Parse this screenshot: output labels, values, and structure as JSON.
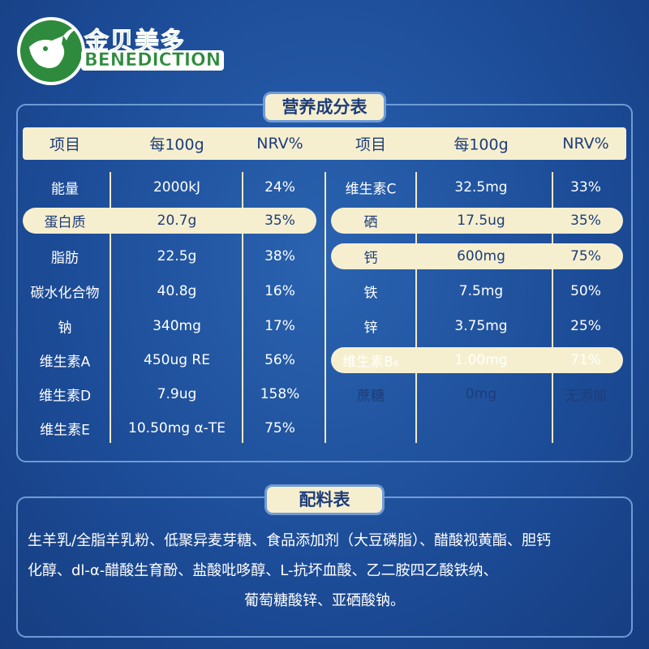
{
  "logo": {
    "brand_cn": "金贝美多",
    "brand_en": "BENEDICTION"
  },
  "nutrition": {
    "title": "营养成分表",
    "headers": [
      "项目",
      "每100g",
      "NRV%",
      "项目",
      "每100g",
      "NRV%"
    ],
    "left_rows": [
      [
        "能量",
        "2000kJ",
        "24%"
      ],
      [
        "蛋白质",
        "20.7g",
        "35%"
      ],
      [
        "脂肪",
        "22.5g",
        "38%"
      ],
      [
        "碳水化合物",
        "40.8g",
        "16%"
      ],
      [
        "钠",
        "340mg",
        "17%"
      ],
      [
        "维生素A",
        "450ug RE",
        "56%"
      ],
      [
        "维生素D",
        "7.9ug",
        "158%"
      ],
      [
        "维生素E",
        "10.50mg α-TE",
        "75%"
      ]
    ],
    "right_rows": [
      [
        "维生素C",
        "32.5mg",
        "33%"
      ],
      [
        "硒",
        "17.5ug",
        "35%"
      ],
      [
        "钙",
        "600mg",
        "75%"
      ],
      [
        "铁",
        "7.5mg",
        "50%"
      ],
      [
        "锌",
        "3.75mg",
        "25%"
      ],
      [
        "维生素B₆",
        "1.00mg",
        "71%"
      ],
      [
        "蔗糖",
        "0mg",
        "无添加"
      ]
    ]
  },
  "ingredients": {
    "title": "配料表",
    "lines": [
      "生羊乳/全脂羊乳粉、低聚异麦芽糖、食品添加剂（大豆磷脂）、醋酸视黄酯、胆钙",
      "化醇、dl-α-醋酸生育酚、盐酸吡哆醇、L-抗坏血酸、乙二胺四乙酸铁纳、",
      "葡萄糖酸锌、亚硒酸钠。"
    ]
  }
}
